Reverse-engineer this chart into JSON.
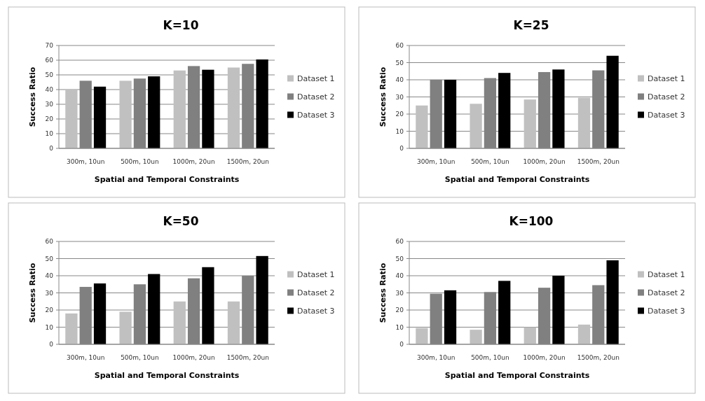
{
  "chart_data": [
    {
      "type": "bar",
      "title": "K=10",
      "xlabel": "Spatial and Temporal Constraints",
      "ylabel": "Success Ratio",
      "categories": [
        "300m, 10un",
        "500m, 10un",
        "1000m, 20un",
        "1500m, 20un"
      ],
      "series": [
        {
          "name": "Dataset 1",
          "color": "#c0c0c0",
          "values": [
            40,
            46,
            53,
            55
          ]
        },
        {
          "name": "Dataset 2",
          "color": "#808080",
          "values": [
            46,
            47.5,
            56,
            57.5
          ]
        },
        {
          "name": "Dataset 3",
          "color": "#000000",
          "values": [
            42,
            49,
            53.5,
            60.5
          ]
        }
      ],
      "ylim": [
        0,
        70
      ],
      "yticks": [
        0,
        10,
        20,
        30,
        40,
        50,
        60,
        70
      ],
      "grid": "y",
      "legend": "right"
    },
    {
      "type": "bar",
      "title": "K=25",
      "xlabel": "Spatial and Temporal Constraints",
      "ylabel": "Success Ratio",
      "categories": [
        "300m, 10un",
        "500m, 10un",
        "1000m, 20un",
        "1500m, 20un"
      ],
      "series": [
        {
          "name": "Dataset 1",
          "color": "#c0c0c0",
          "values": [
            25,
            26,
            28.5,
            29.5
          ]
        },
        {
          "name": "Dataset 2",
          "color": "#808080",
          "values": [
            40,
            41,
            44.5,
            45.5
          ]
        },
        {
          "name": "Dataset 3",
          "color": "#000000",
          "values": [
            40,
            44,
            46,
            54
          ]
        }
      ],
      "ylim": [
        0,
        60
      ],
      "yticks": [
        0,
        10,
        20,
        30,
        40,
        50,
        60
      ],
      "grid": "y",
      "legend": "right"
    },
    {
      "type": "bar",
      "title": "K=50",
      "xlabel": "Spatial and Temporal Constraints",
      "ylabel": "Success Ratio",
      "categories": [
        "300m, 10un",
        "500m, 10un",
        "1000m, 20un",
        "1500m, 20un"
      ],
      "series": [
        {
          "name": "Dataset 1",
          "color": "#c0c0c0",
          "values": [
            18,
            19,
            25,
            25
          ]
        },
        {
          "name": "Dataset 2",
          "color": "#808080",
          "values": [
            33.5,
            35,
            38.5,
            40
          ]
        },
        {
          "name": "Dataset 3",
          "color": "#000000",
          "values": [
            35.5,
            41,
            45,
            51.5
          ]
        }
      ],
      "ylim": [
        0,
        60
      ],
      "yticks": [
        0,
        10,
        20,
        30,
        40,
        50,
        60
      ],
      "grid": "y",
      "legend": "right"
    },
    {
      "type": "bar",
      "title": "K=100",
      "xlabel": "Spatial and Temporal Constraints",
      "ylabel": "Success Ratio",
      "categories": [
        "300m, 10un",
        "500m, 10un",
        "1000m, 20un",
        "1500m, 20un"
      ],
      "series": [
        {
          "name": "Dataset 1",
          "color": "#c0c0c0",
          "values": [
            9.5,
            8.5,
            10,
            11.5
          ]
        },
        {
          "name": "Dataset 2",
          "color": "#808080",
          "values": [
            29.5,
            30.5,
            33,
            34.5
          ]
        },
        {
          "name": "Dataset 3",
          "color": "#000000",
          "values": [
            31.5,
            37,
            40,
            49
          ]
        }
      ],
      "ylim": [
        0,
        60
      ],
      "yticks": [
        0,
        10,
        20,
        30,
        40,
        50,
        60
      ],
      "grid": "y",
      "legend": "right"
    }
  ]
}
